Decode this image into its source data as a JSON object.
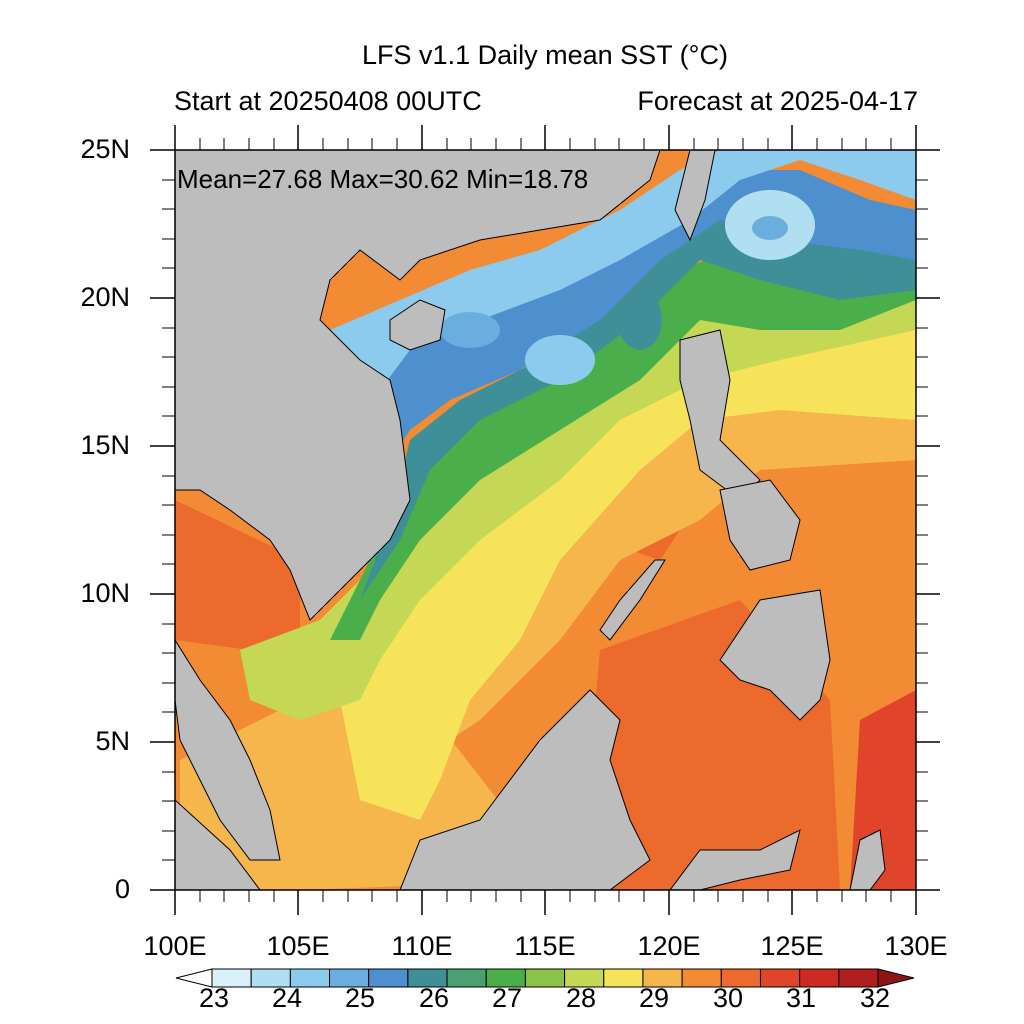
{
  "title": "LFS v1.1 Daily mean SST (°C)",
  "subtitle_left": "Start at 20250408 00UTC",
  "subtitle_right": "Forecast at 2025-04-17",
  "stats": "Mean=27.68  Max=30.62  Min=18.78",
  "lat_labels": [
    "25N",
    "20N",
    "15N",
    "10N",
    "5N",
    "0"
  ],
  "lon_labels": [
    "100E",
    "105E",
    "110E",
    "115E",
    "120E",
    "125E",
    "130E"
  ],
  "colorbar": {
    "labels": [
      "23",
      "24",
      "25",
      "26",
      "27",
      "28",
      "29",
      "30",
      "31",
      "32"
    ],
    "colors": [
      "#ffffff",
      "#d9f0fa",
      "#b0dff2",
      "#8ccbee",
      "#6aaee0",
      "#4e8fce",
      "#3f8f98",
      "#49a070",
      "#4aaf4a",
      "#8bc34a",
      "#c4d855",
      "#f7e35a",
      "#f6b64c",
      "#f28b33",
      "#ec6a2c",
      "#e0452a",
      "#cc2a22",
      "#b01d1d",
      "#8e1515"
    ]
  },
  "land_color": "#bdbdbd",
  "region_colors": {
    "cold_north": "#8ccbee",
    "blue": "#4e8fce",
    "teal": "#3f8f98",
    "green": "#4aaf4a",
    "lightgreen": "#c4d855",
    "yellow": "#f7e35a",
    "lightorange": "#f6b64c",
    "orange": "#f28b33",
    "redorange": "#ec6a2c",
    "red": "#e0452a"
  }
}
